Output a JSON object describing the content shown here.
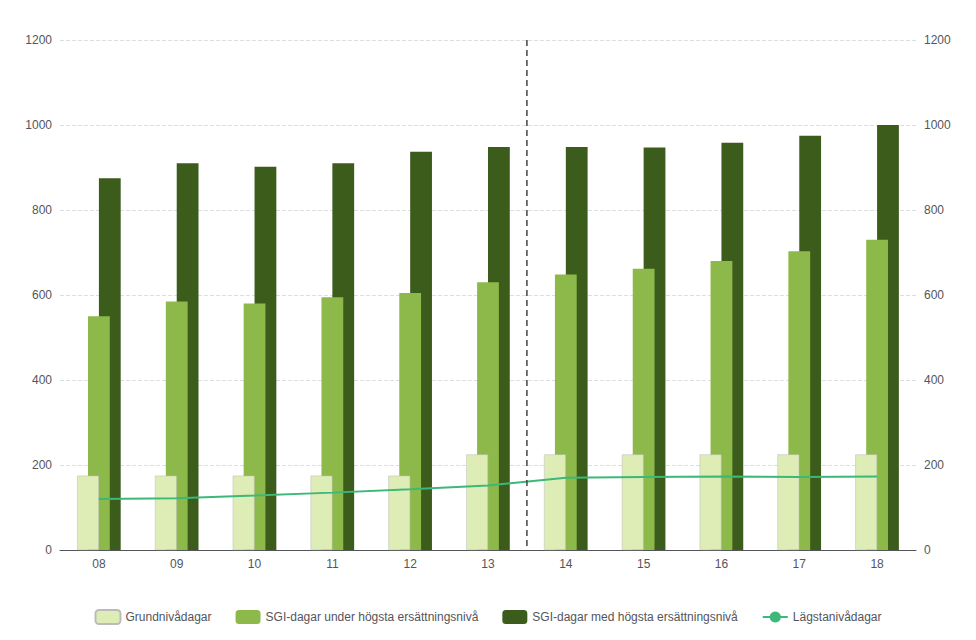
{
  "chart_data": {
    "type": "bar",
    "categories": [
      "08",
      "09",
      "10",
      "11",
      "12",
      "13",
      "14",
      "15",
      "16",
      "17",
      "18"
    ],
    "series": [
      {
        "name": "Grundnivådagar",
        "type": "bar",
        "color": "#deedb5",
        "values": [
          175,
          175,
          175,
          175,
          175,
          225,
          225,
          225,
          225,
          225,
          225
        ]
      },
      {
        "name": "SGI-dagar under högsta ersättningsnivå",
        "type": "bar",
        "color": "#8db84a",
        "values": [
          550,
          585,
          580,
          595,
          605,
          630,
          648,
          662,
          680,
          703,
          730
        ]
      },
      {
        "name": "SGI-dagar med högsta ersättningsnivå",
        "type": "bar",
        "color": "#3b5c1a",
        "values": [
          875,
          910,
          902,
          910,
          937,
          948,
          948,
          947,
          958,
          975,
          1000
        ]
      },
      {
        "name": "Lägstanivådagar",
        "type": "line",
        "color": "#3cb878",
        "values": [
          120,
          122,
          128,
          135,
          143,
          152,
          170,
          172,
          173,
          172,
          173
        ]
      }
    ],
    "ylim": [
      0,
      1200
    ],
    "yticks": [
      0,
      200,
      400,
      600,
      800,
      1000,
      1200
    ],
    "y2lim": [
      0,
      1200
    ],
    "y2ticks": [
      0,
      200,
      400,
      600,
      800,
      1000,
      1200
    ],
    "annotations": [
      {
        "type": "vline",
        "x_between": [
          "13",
          "14"
        ],
        "line_style": "dashed"
      }
    ],
    "grid": true,
    "legend": "bottom"
  }
}
